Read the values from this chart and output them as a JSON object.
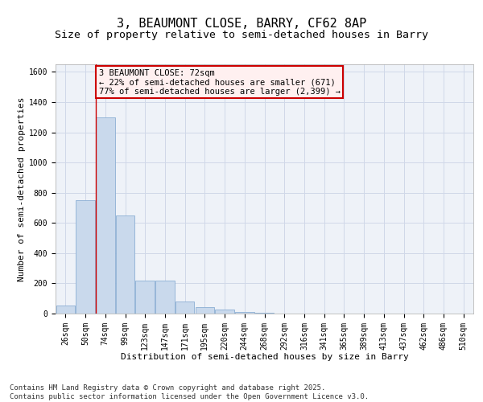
{
  "title": "3, BEAUMONT CLOSE, BARRY, CF62 8AP",
  "subtitle": "Size of property relative to semi-detached houses in Barry",
  "xlabel": "Distribution of semi-detached houses by size in Barry",
  "ylabel": "Number of semi-detached properties",
  "categories": [
    "26sqm",
    "50sqm",
    "74sqm",
    "99sqm",
    "123sqm",
    "147sqm",
    "171sqm",
    "195sqm",
    "220sqm",
    "244sqm",
    "268sqm",
    "292sqm",
    "316sqm",
    "341sqm",
    "365sqm",
    "389sqm",
    "413sqm",
    "437sqm",
    "462sqm",
    "486sqm",
    "510sqm"
  ],
  "values": [
    55,
    750,
    1300,
    650,
    220,
    220,
    80,
    40,
    25,
    10,
    4,
    2,
    1,
    1,
    0,
    0,
    0,
    0,
    0,
    0,
    0
  ],
  "bar_color": "#c9d9ec",
  "bar_edge_color": "#8bafd4",
  "grid_color": "#d0d8e8",
  "background_color": "#eef2f8",
  "property_line_color": "#cc0000",
  "annotation_text": "3 BEAUMONT CLOSE: 72sqm\n← 22% of semi-detached houses are smaller (671)\n77% of semi-detached houses are larger (2,399) →",
  "annotation_box_facecolor": "#fff0f0",
  "annotation_border_color": "#cc0000",
  "ylim": [
    0,
    1650
  ],
  "yticks": [
    0,
    200,
    400,
    600,
    800,
    1000,
    1200,
    1400,
    1600
  ],
  "footer_text": "Contains HM Land Registry data © Crown copyright and database right 2025.\nContains public sector information licensed under the Open Government Licence v3.0.",
  "title_fontsize": 11,
  "subtitle_fontsize": 9.5,
  "axis_label_fontsize": 8,
  "tick_fontsize": 7,
  "annotation_fontsize": 7.5,
  "footer_fontsize": 6.5
}
